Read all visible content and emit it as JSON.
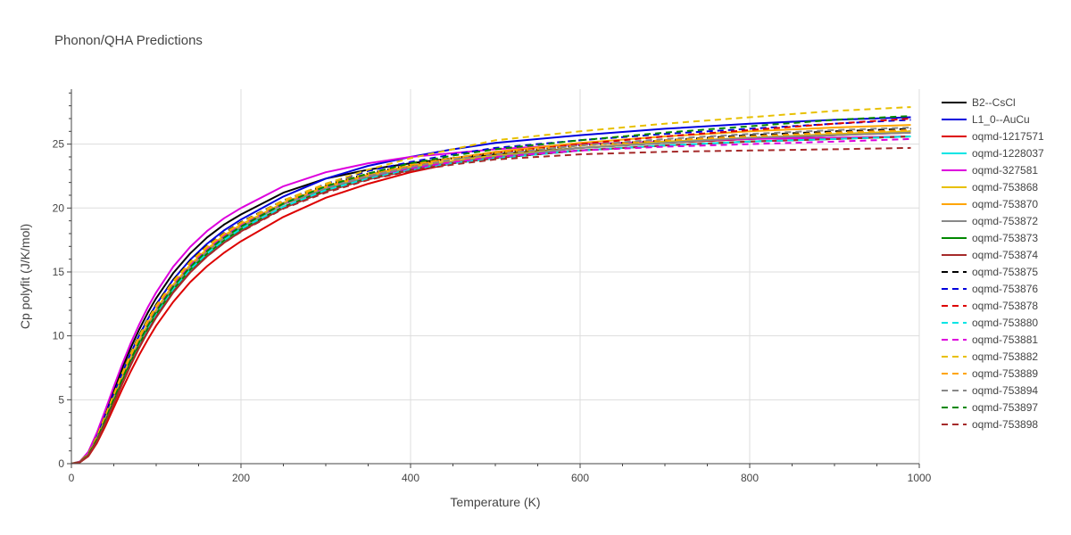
{
  "chart_data": {
    "type": "line",
    "title": "Phonon/QHA Predictions",
    "xlabel": "Temperature (K)",
    "ylabel": "Cp polyfit (J/K/mol)",
    "xlim": [
      0,
      1000
    ],
    "ylim": [
      0,
      29.3
    ],
    "xticks": [
      0,
      200,
      400,
      600,
      800,
      1000
    ],
    "yticks": [
      0,
      5,
      10,
      15,
      20,
      25
    ],
    "grid": true,
    "legend_position": "right",
    "x": [
      0,
      10,
      20,
      30,
      40,
      50,
      60,
      70,
      80,
      90,
      100,
      120,
      140,
      160,
      180,
      200,
      250,
      300,
      350,
      400,
      450,
      500,
      600,
      700,
      800,
      900,
      990
    ],
    "series": [
      {
        "name": "B2--CsCl",
        "color": "#000000",
        "dash": "solid",
        "values": [
          0,
          0.16,
          0.88,
          2.29,
          4.0,
          5.77,
          7.48,
          9.06,
          10.5,
          11.8,
          12.95,
          14.9,
          16.44,
          17.7,
          18.7,
          19.5,
          21.2,
          22.3,
          23.0,
          23.5,
          23.9,
          24.2,
          24.7,
          25.1,
          25.4,
          25.7,
          26.0
        ]
      },
      {
        "name": "L1_0--AuCu",
        "color": "#0000dd",
        "dash": "solid",
        "values": [
          0,
          0.14,
          0.8,
          2.1,
          3.75,
          5.45,
          7.1,
          8.65,
          10.05,
          11.3,
          12.45,
          14.4,
          15.95,
          17.2,
          18.25,
          19.1,
          20.9,
          22.3,
          23.3,
          24.0,
          24.6,
          25.1,
          25.7,
          26.2,
          26.6,
          26.9,
          27.1
        ]
      },
      {
        "name": "oqmd-1217571",
        "color": "#dd0000",
        "dash": "solid",
        "values": [
          0,
          0.1,
          0.58,
          1.6,
          2.94,
          4.39,
          5.84,
          7.22,
          8.51,
          9.7,
          10.8,
          12.65,
          14.2,
          15.45,
          16.5,
          17.4,
          19.3,
          20.8,
          21.9,
          22.8,
          23.5,
          24.0,
          24.7,
          25.1,
          25.4,
          25.7,
          25.9
        ]
      },
      {
        "name": "oqmd-1228037",
        "color": "#00e5e5",
        "dash": "solid",
        "values": [
          0,
          0.12,
          0.68,
          1.86,
          3.35,
          4.95,
          6.52,
          8.0,
          9.36,
          10.6,
          11.72,
          13.6,
          15.1,
          16.35,
          17.4,
          18.3,
          20.1,
          21.4,
          22.4,
          23.1,
          23.6,
          24.0,
          24.5,
          24.9,
          25.2,
          25.4,
          25.6
        ]
      },
      {
        "name": "oqmd-327581",
        "color": "#dd00dd",
        "dash": "solid",
        "values": [
          0,
          0.17,
          0.93,
          2.42,
          4.2,
          6.03,
          7.8,
          9.43,
          10.9,
          12.22,
          13.4,
          15.4,
          16.95,
          18.2,
          19.2,
          20.0,
          21.7,
          22.8,
          23.5,
          24.0,
          24.3,
          24.6,
          25.0,
          25.2,
          25.4,
          25.5,
          25.6
        ]
      },
      {
        "name": "oqmd-753868",
        "color": "#e8c000",
        "dash": "solid",
        "values": [
          0,
          0.13,
          0.72,
          1.95,
          3.5,
          5.15,
          6.76,
          8.28,
          9.67,
          10.93,
          12.07,
          14.0,
          15.55,
          16.8,
          17.85,
          18.7,
          20.4,
          21.6,
          22.5,
          23.2,
          23.7,
          24.1,
          24.7,
          25.2,
          25.5,
          25.8,
          26.0
        ]
      },
      {
        "name": "oqmd-753870",
        "color": "#ffa500",
        "dash": "solid",
        "values": [
          0,
          0.12,
          0.7,
          1.9,
          3.42,
          5.05,
          6.64,
          8.15,
          9.54,
          10.8,
          11.95,
          13.9,
          15.45,
          16.7,
          17.75,
          18.6,
          20.4,
          21.7,
          22.6,
          23.3,
          23.9,
          24.4,
          25.1,
          25.6,
          26.0,
          26.3,
          26.5
        ]
      },
      {
        "name": "oqmd-753872",
        "color": "#888888",
        "dash": "solid",
        "values": [
          0,
          0.12,
          0.68,
          1.86,
          3.36,
          4.97,
          6.55,
          8.05,
          9.44,
          10.7,
          11.85,
          13.8,
          15.35,
          16.6,
          17.65,
          18.5,
          20.3,
          21.5,
          22.4,
          23.1,
          23.6,
          24.0,
          24.7,
          25.1,
          25.5,
          25.7,
          25.9
        ]
      },
      {
        "name": "oqmd-753873",
        "color": "#008800",
        "dash": "solid",
        "values": [
          0,
          0.12,
          0.66,
          1.82,
          3.3,
          4.9,
          6.46,
          7.95,
          9.32,
          10.57,
          11.7,
          13.62,
          15.17,
          16.42,
          17.47,
          18.35,
          20.1,
          21.4,
          22.3,
          23.0,
          23.5,
          23.9,
          24.5,
          24.9,
          25.2,
          25.4,
          25.6
        ]
      },
      {
        "name": "oqmd-753874",
        "color": "#a52a2a",
        "dash": "solid",
        "values": [
          0,
          0.11,
          0.62,
          1.72,
          3.15,
          4.7,
          6.23,
          7.7,
          9.06,
          10.3,
          11.44,
          13.38,
          14.95,
          16.22,
          17.28,
          18.17,
          20.0,
          21.3,
          22.25,
          22.95,
          23.5,
          23.9,
          24.5,
          24.9,
          25.2,
          25.4,
          25.6
        ]
      },
      {
        "name": "oqmd-753875",
        "color": "#000000",
        "dash": "dash",
        "values": [
          0,
          0.14,
          0.8,
          2.12,
          3.76,
          5.47,
          7.12,
          8.66,
          10.06,
          11.32,
          12.45,
          14.35,
          15.85,
          17.05,
          18.05,
          18.9,
          20.6,
          21.8,
          22.7,
          23.4,
          23.9,
          24.3,
          24.9,
          25.3,
          25.7,
          26.0,
          26.2
        ]
      },
      {
        "name": "oqmd-753876",
        "color": "#0000dd",
        "dash": "dash",
        "values": [
          0,
          0.13,
          0.74,
          2.0,
          3.58,
          5.25,
          6.88,
          8.4,
          9.8,
          11.05,
          12.19,
          14.12,
          15.65,
          16.88,
          17.9,
          18.75,
          20.5,
          21.9,
          22.9,
          23.6,
          24.2,
          24.7,
          25.3,
          25.8,
          26.2,
          26.6,
          26.9
        ]
      },
      {
        "name": "oqmd-753878",
        "color": "#dd0000",
        "dash": "dash",
        "values": [
          0,
          0.12,
          0.69,
          1.88,
          3.39,
          5.01,
          6.6,
          8.1,
          9.48,
          10.74,
          11.89,
          13.83,
          15.38,
          16.64,
          17.7,
          18.55,
          20.3,
          21.6,
          22.5,
          23.2,
          23.8,
          24.3,
          25.0,
          25.6,
          26.1,
          26.6,
          27.0
        ]
      },
      {
        "name": "oqmd-753880",
        "color": "#00e5e5",
        "dash": "dash",
        "values": [
          0,
          0.12,
          0.67,
          1.84,
          3.33,
          4.93,
          6.5,
          7.99,
          9.36,
          10.61,
          11.75,
          13.67,
          15.21,
          16.46,
          17.51,
          18.38,
          20.1,
          21.4,
          22.3,
          23.0,
          23.5,
          23.9,
          24.5,
          24.9,
          25.2,
          25.4,
          25.6
        ]
      },
      {
        "name": "oqmd-753881",
        "color": "#dd00dd",
        "dash": "dash",
        "values": [
          0,
          0.13,
          0.73,
          1.98,
          3.55,
          5.22,
          6.84,
          8.36,
          9.75,
          11.0,
          12.13,
          14.05,
          15.57,
          16.8,
          17.82,
          18.65,
          20.3,
          21.6,
          22.5,
          23.1,
          23.6,
          24.0,
          24.5,
          24.8,
          25.0,
          25.2,
          25.4
        ]
      },
      {
        "name": "oqmd-753882",
        "color": "#e8c000",
        "dash": "dash",
        "values": [
          0,
          0.14,
          0.79,
          2.1,
          3.73,
          5.43,
          7.07,
          8.6,
          9.98,
          11.23,
          12.35,
          14.25,
          15.77,
          17.0,
          18.0,
          18.85,
          20.6,
          21.9,
          23.0,
          23.9,
          24.6,
          25.3,
          26.0,
          26.6,
          27.1,
          27.6,
          27.9
        ]
      },
      {
        "name": "oqmd-753889",
        "color": "#ffa500",
        "dash": "dash",
        "values": [
          0,
          0.13,
          0.75,
          2.03,
          3.62,
          5.3,
          6.93,
          8.46,
          9.85,
          11.1,
          12.24,
          14.16,
          15.69,
          16.92,
          17.94,
          18.78,
          20.5,
          21.8,
          22.7,
          23.4,
          23.9,
          24.3,
          24.9,
          25.3,
          25.6,
          25.9,
          26.1
        ]
      },
      {
        "name": "oqmd-753894",
        "color": "#888888",
        "dash": "dash",
        "values": [
          0,
          0.12,
          0.7,
          1.9,
          3.42,
          5.04,
          6.63,
          8.13,
          9.51,
          10.77,
          11.91,
          13.84,
          15.38,
          16.63,
          17.68,
          18.55,
          20.3,
          21.6,
          22.5,
          23.2,
          23.8,
          24.2,
          24.9,
          25.4,
          25.8,
          26.1,
          26.3
        ]
      },
      {
        "name": "oqmd-753897",
        "color": "#008800",
        "dash": "dash",
        "values": [
          0,
          0.12,
          0.7,
          1.9,
          3.42,
          5.04,
          6.63,
          8.13,
          9.51,
          10.77,
          11.91,
          13.84,
          15.38,
          16.63,
          17.68,
          18.55,
          20.35,
          21.7,
          22.7,
          23.5,
          24.1,
          24.6,
          25.3,
          25.9,
          26.4,
          26.9,
          27.2
        ]
      },
      {
        "name": "oqmd-753898",
        "color": "#a52a2a",
        "dash": "dash",
        "values": [
          0,
          0.11,
          0.63,
          1.75,
          3.19,
          4.76,
          6.3,
          7.77,
          9.13,
          10.37,
          11.5,
          13.42,
          14.97,
          16.22,
          17.27,
          18.14,
          19.95,
          21.2,
          22.2,
          22.9,
          23.4,
          23.8,
          24.2,
          24.4,
          24.5,
          24.6,
          24.7
        ]
      }
    ]
  }
}
